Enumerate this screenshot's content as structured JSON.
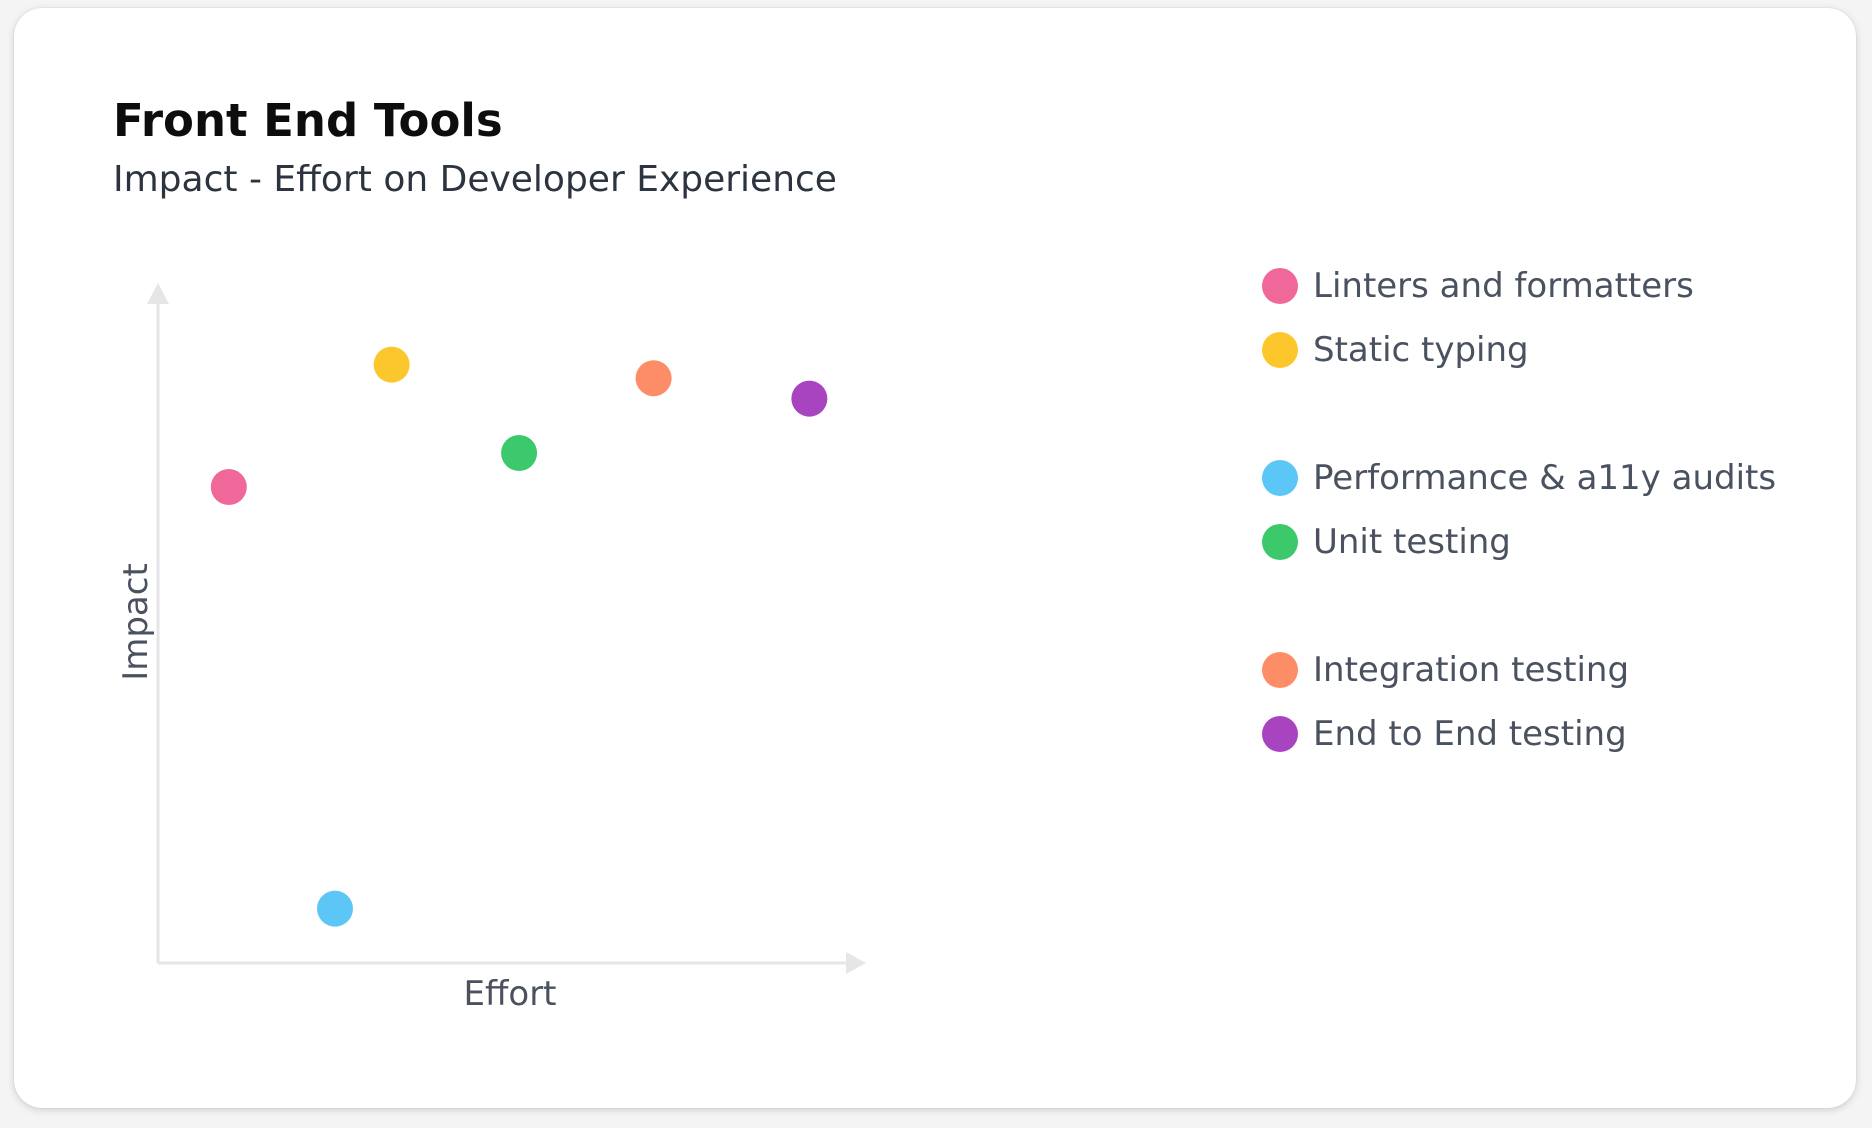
{
  "chart_data": {
    "type": "scatter",
    "title": "Front End Tools",
    "subtitle": "Impact - Effort on Developer Experience",
    "xlabel": "Effort",
    "ylabel": "Impact",
    "xlim": [
      0,
      10
    ],
    "ylim": [
      0,
      10
    ],
    "grid": false,
    "legend_placement": "right",
    "series": [
      {
        "name": "Linters and formatters",
        "color": "#f0679a",
        "x": 1.0,
        "y": 7.0
      },
      {
        "name": "Static typing",
        "color": "#fcc72c",
        "x": 3.3,
        "y": 8.8
      },
      {
        "name": "Performance & a11y audits",
        "color": "#5cc7f7",
        "x": 2.5,
        "y": 0.8
      },
      {
        "name": "Unit testing",
        "color": "#3cc96c",
        "x": 5.1,
        "y": 7.5
      },
      {
        "name": "Integration testing",
        "color": "#fd8d66",
        "x": 7.0,
        "y": 8.6
      },
      {
        "name": "End to End testing",
        "color": "#a944c0",
        "x": 9.2,
        "y": 8.3
      }
    ],
    "legend_groups": [
      [
        0,
        1
      ],
      [
        2,
        3
      ],
      [
        4,
        5
      ]
    ]
  }
}
